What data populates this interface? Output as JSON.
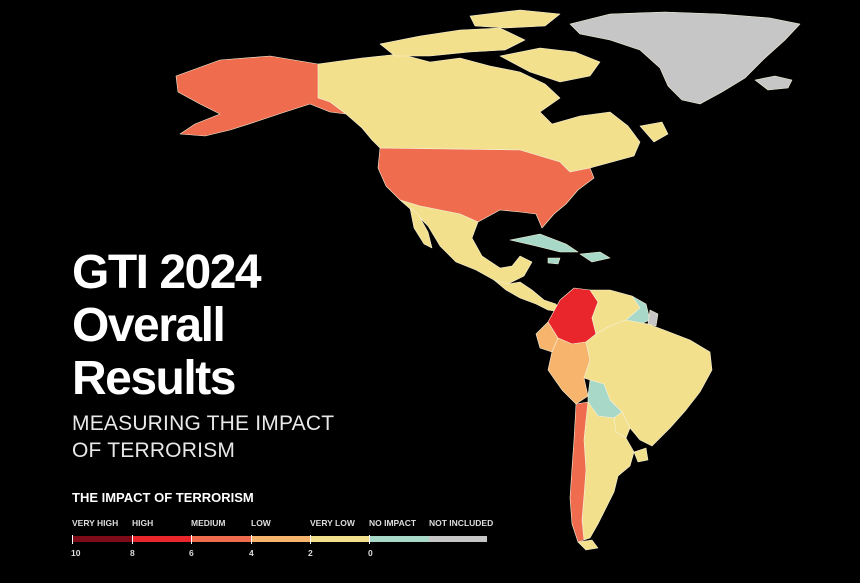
{
  "title_lines": [
    "GTI 2024",
    "Overall",
    "Results"
  ],
  "subtitle_lines": [
    "MEASURING THE IMPACT",
    "OF TERRORISM"
  ],
  "legend": {
    "title": "THE IMPACT OF TERRORISM",
    "categories": [
      {
        "label": "VERY HIGH",
        "color": "#7e0b18"
      },
      {
        "label": "HIGH",
        "color": "#e8262b"
      },
      {
        "label": "MEDIUM",
        "color": "#ef6d4e"
      },
      {
        "label": "LOW",
        "color": "#f6b46c"
      },
      {
        "label": "VERY LOW",
        "color": "#f3e08c"
      },
      {
        "label": "NO IMPACT",
        "color": "#a7d8c8"
      },
      {
        "label": "NOT INCLUDED",
        "color": "#c6c6c6"
      }
    ],
    "scale": [
      "10",
      "8",
      "6",
      "4",
      "2",
      "0"
    ]
  },
  "map_colors": {
    "background": "#000000",
    "border": "#f6f0d8",
    "canada": "#f3e08c",
    "alaska": "#ef6d4e",
    "usa": "#ef6d4e",
    "mexico": "#f3e08c",
    "central_america": "#f3e08c",
    "caribbean": "#a7d8c8",
    "greenland": "#c6c6c6",
    "colombia": "#e8262b",
    "venezuela": "#f3e08c",
    "guianas": "#a7d8c8",
    "french_guiana": "#c6c6c6",
    "ecuador": "#f6b46c",
    "peru": "#f6b46c",
    "bolivia": "#a7d8c8",
    "brazil": "#f3e08c",
    "paraguay": "#f3e08c",
    "uruguay": "#f3e08c",
    "argentina": "#f3e08c",
    "chile": "#ef6d4e"
  }
}
